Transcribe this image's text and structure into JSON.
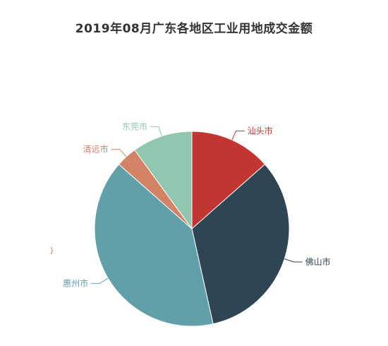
{
  "chart_data": {
    "type": "pie",
    "title": "2019年08月广东各地区工业用地成交金额",
    "categories": [
      "汕头市",
      "佛山市",
      "惠州市",
      "清远市",
      "东莞市"
    ],
    "values": [
      13.5,
      33.0,
      40.0,
      3.5,
      10.0
    ],
    "colors": [
      "#c23531",
      "#2f4554",
      "#61a0a8",
      "#d48265",
      "#91c7ae"
    ],
    "legend": "none",
    "stub_text": "}",
    "stub_color": "#d48265"
  }
}
